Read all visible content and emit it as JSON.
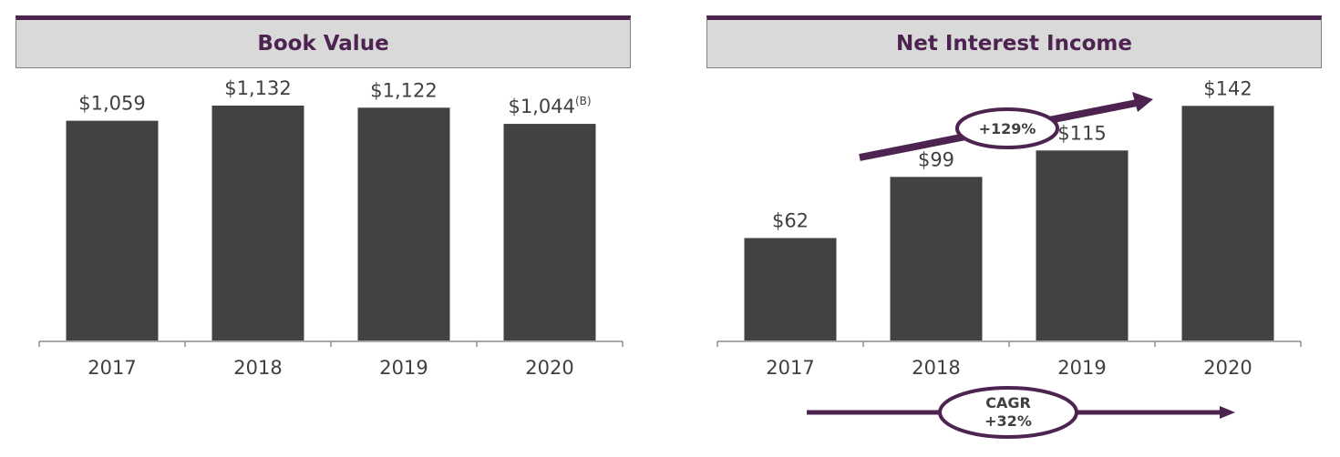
{
  "colors": {
    "bar": "#424143",
    "accent": "#4d2350",
    "header_bg": "#d9d9d9",
    "text": "#404040"
  },
  "chart_data": [
    {
      "type": "bar",
      "title": "Book Value",
      "categories": [
        "2017",
        "2018",
        "2019",
        "2020"
      ],
      "values": [
        1059,
        1132,
        1122,
        1044
      ],
      "value_labels": [
        "$1,059",
        "$1,132",
        "$1,122",
        "$1,044"
      ],
      "label_footnotes": [
        "",
        "",
        "",
        "(B)"
      ],
      "ylim": [
        0,
        1290
      ]
    },
    {
      "type": "bar",
      "title": "Net Interest Income",
      "categories": [
        "2017",
        "2018",
        "2019",
        "2020"
      ],
      "values": [
        62,
        99,
        115,
        142
      ],
      "value_labels": [
        "$62",
        "$99",
        "$115",
        "$142"
      ],
      "ylim": [
        0,
        162
      ],
      "annotations": {
        "growth": "+129%",
        "cagr_label": "CAGR",
        "cagr_value": "+32%"
      }
    }
  ]
}
